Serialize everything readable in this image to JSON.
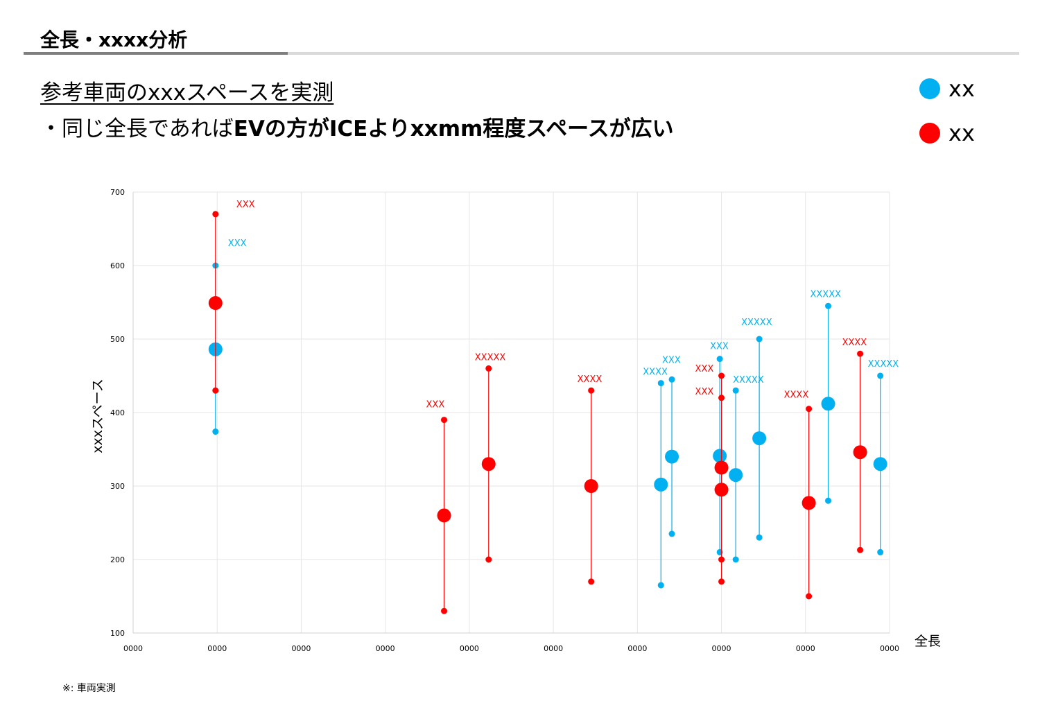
{
  "header": {
    "title": "全長・xxxx分析",
    "heading": "参考車両のxxxスペースを実測",
    "subheading_prefix": "・同じ全長であれば",
    "subheading_bold": "EVの方がICEよりxxmm程度スペースが広い"
  },
  "legend": {
    "items": [
      {
        "label": "xx",
        "color": "#00b0f0"
      },
      {
        "label": "xx",
        "color": "#ff0000"
      }
    ]
  },
  "footnote": "※: 車両実測",
  "colors": {
    "blue": "#00b0f0",
    "red": "#ff0000",
    "grid": "#e6e6e6"
  },
  "chart_data": {
    "type": "scatter",
    "title": "",
    "xlabel": "全長",
    "ylabel": "xxxスペース",
    "xlim": [
      0,
      9
    ],
    "ylim": [
      100,
      700
    ],
    "yticks": [
      "100",
      "200",
      "300",
      "400",
      "500",
      "600",
      "700"
    ],
    "xtick_labels": [
      "0000",
      "0000",
      "0000",
      "0000",
      "0000",
      "0000",
      "0000",
      "0000",
      "0000",
      "0000"
    ],
    "grid": true,
    "series": [
      {
        "name": "xx",
        "color": "#00b0f0",
        "points": [
          {
            "x": 0.98,
            "mid": 486,
            "low": 374,
            "high": 600,
            "label": "XXX"
          },
          {
            "x": 6.28,
            "mid": 302,
            "low": 165,
            "high": 440,
            "label": "XXXX"
          },
          {
            "x": 6.41,
            "mid": 340,
            "low": 235,
            "high": 445,
            "label": "XXX"
          },
          {
            "x": 6.98,
            "mid": 341,
            "low": 210,
            "high": 473,
            "label": "XXX"
          },
          {
            "x": 7.17,
            "mid": 315,
            "low": 200,
            "high": 430,
            "label": "XXXXX"
          },
          {
            "x": 7.45,
            "mid": 365,
            "low": 230,
            "high": 500,
            "label": "XXXXX"
          },
          {
            "x": 8.27,
            "mid": 412,
            "low": 280,
            "high": 545,
            "label": "XXXXX"
          },
          {
            "x": 8.89,
            "mid": 330,
            "low": 210,
            "high": 450,
            "label": "XXXXX"
          }
        ]
      },
      {
        "name": "xx",
        "color": "#ff0000",
        "points": [
          {
            "x": 0.98,
            "mid": 549,
            "low": 430,
            "high": 670,
            "label": "XXX"
          },
          {
            "x": 3.7,
            "mid": 260,
            "low": 130,
            "high": 390,
            "label": "XXX"
          },
          {
            "x": 4.23,
            "mid": 330,
            "low": 200,
            "high": 460,
            "label": "XXXXX"
          },
          {
            "x": 5.45,
            "mid": 300,
            "low": 170,
            "high": 430,
            "label": "XXXX"
          },
          {
            "x": 7.0,
            "mid": 325,
            "low": 200,
            "high": 450,
            "label": "XXX"
          },
          {
            "x": 7.0,
            "mid": 295,
            "low": 170,
            "high": 420,
            "label": "XXX"
          },
          {
            "x": 8.04,
            "mid": 277,
            "low": 150,
            "high": 405,
            "label": "XXXX"
          },
          {
            "x": 8.65,
            "mid": 346,
            "low": 213,
            "high": 480,
            "label": "XXXX"
          }
        ]
      }
    ]
  }
}
